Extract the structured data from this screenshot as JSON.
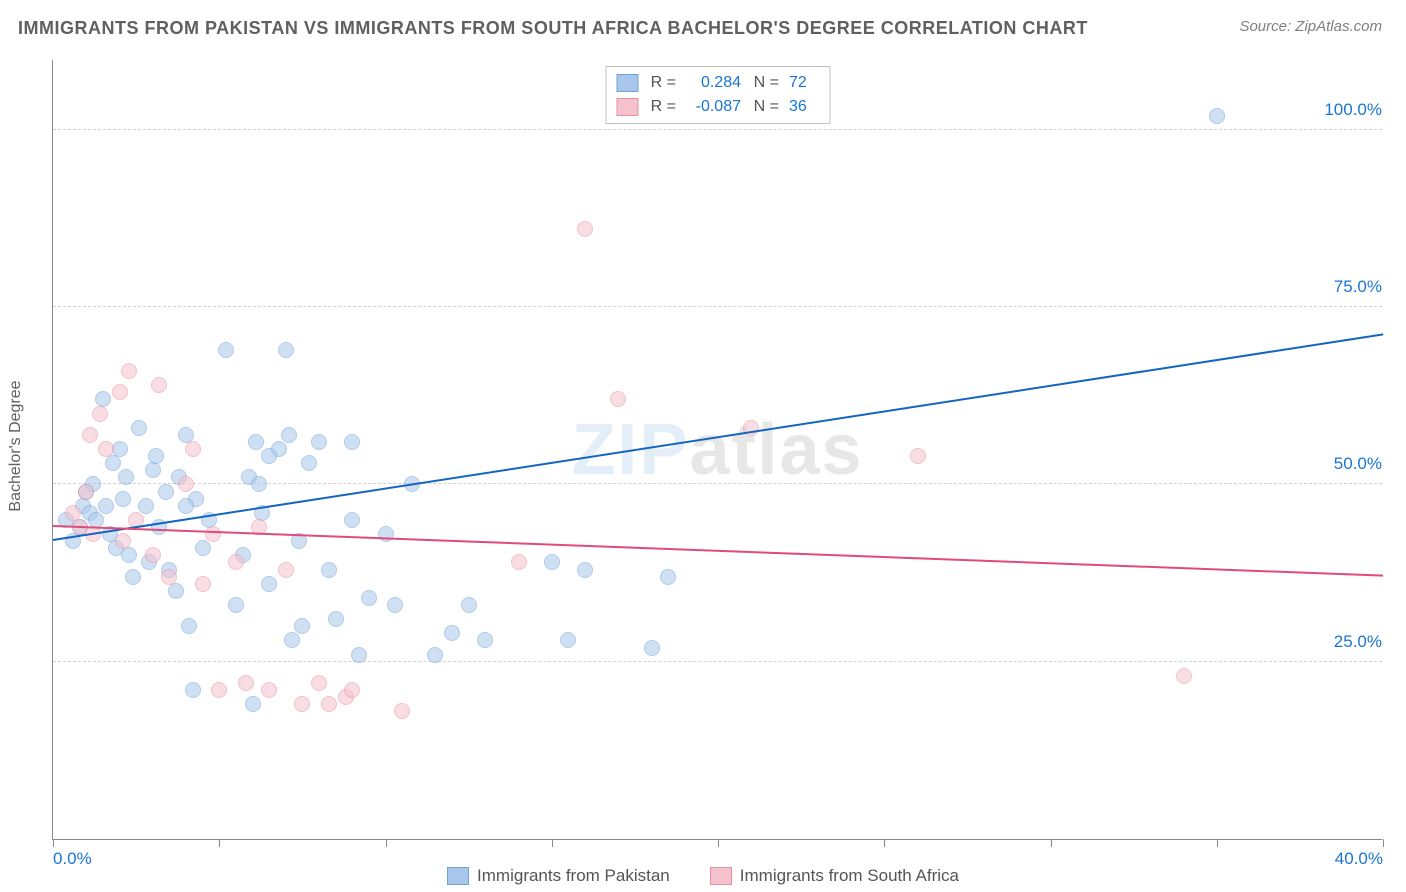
{
  "title": "IMMIGRANTS FROM PAKISTAN VS IMMIGRANTS FROM SOUTH AFRICA BACHELOR'S DEGREE CORRELATION CHART",
  "source": "Source: ZipAtlas.com",
  "watermark_a": "ZIP",
  "watermark_b": "atlas",
  "chart": {
    "type": "scatter",
    "background_color": "#ffffff",
    "grid_color": "#d0d0d0",
    "axis_color": "#888888",
    "label_color": "#606060",
    "tick_label_color": "#1976d2",
    "yaxis_label": "Bachelor's Degree",
    "xlim": [
      0,
      40
    ],
    "ylim": [
      0,
      110
    ],
    "yticks": [
      25,
      50,
      75,
      100
    ],
    "ytick_labels": [
      "25.0%",
      "50.0%",
      "75.0%",
      "100.0%"
    ],
    "xticks": [
      0,
      5,
      10,
      15,
      20,
      25,
      30,
      35,
      40
    ],
    "xtick_labels_shown": {
      "0": "0.0%",
      "40": "40.0%"
    },
    "marker_radius": 8,
    "marker_opacity": 0.55,
    "series": [
      {
        "name": "Immigrants from Pakistan",
        "color_fill": "#a9c7ea",
        "color_stroke": "#6fa3de",
        "R": "0.284",
        "N": "72",
        "trend": {
          "x1": 0,
          "y1": 42,
          "x2": 40,
          "y2": 71,
          "color": "#1565c0",
          "width": 2
        },
        "points": [
          [
            0.4,
            45
          ],
          [
            0.6,
            42
          ],
          [
            0.8,
            44
          ],
          [
            0.9,
            47
          ],
          [
            1.0,
            49
          ],
          [
            1.1,
            46
          ],
          [
            1.2,
            50
          ],
          [
            1.3,
            45
          ],
          [
            1.5,
            62
          ],
          [
            1.6,
            47
          ],
          [
            1.7,
            43
          ],
          [
            1.8,
            53
          ],
          [
            1.9,
            41
          ],
          [
            2.0,
            55
          ],
          [
            2.1,
            48
          ],
          [
            2.2,
            51
          ],
          [
            2.3,
            40
          ],
          [
            2.4,
            37
          ],
          [
            2.6,
            58
          ],
          [
            2.8,
            47
          ],
          [
            2.9,
            39
          ],
          [
            3.0,
            52
          ],
          [
            3.1,
            54
          ],
          [
            3.2,
            44
          ],
          [
            3.4,
            49
          ],
          [
            3.5,
            38
          ],
          [
            3.7,
            35
          ],
          [
            3.8,
            51
          ],
          [
            4.0,
            57
          ],
          [
            4.1,
            30
          ],
          [
            4.2,
            21
          ],
          [
            4.3,
            48
          ],
          [
            4.5,
            41
          ],
          [
            4.7,
            45
          ],
          [
            5.2,
            69
          ],
          [
            5.5,
            33
          ],
          [
            5.7,
            40
          ],
          [
            5.9,
            51
          ],
          [
            6.0,
            19
          ],
          [
            6.1,
            56
          ],
          [
            6.2,
            50
          ],
          [
            6.3,
            46
          ],
          [
            6.5,
            36
          ],
          [
            6.8,
            55
          ],
          [
            7.0,
            69
          ],
          [
            7.1,
            57
          ],
          [
            7.2,
            28
          ],
          [
            7.4,
            42
          ],
          [
            7.5,
            30
          ],
          [
            7.7,
            53
          ],
          [
            8.0,
            56
          ],
          [
            8.3,
            38
          ],
          [
            8.5,
            31
          ],
          [
            9.0,
            45
          ],
          [
            9.2,
            26
          ],
          [
            9.5,
            34
          ],
          [
            10.0,
            43
          ],
          [
            10.3,
            33
          ],
          [
            10.8,
            50
          ],
          [
            11.5,
            26
          ],
          [
            12.0,
            29
          ],
          [
            12.5,
            33
          ],
          [
            13.0,
            28
          ],
          [
            15.0,
            39
          ],
          [
            15.5,
            28
          ],
          [
            16.0,
            38
          ],
          [
            18.0,
            27
          ],
          [
            18.5,
            37
          ],
          [
            9.0,
            56
          ],
          [
            6.5,
            54
          ],
          [
            4.0,
            47
          ],
          [
            35.0,
            102
          ]
        ]
      },
      {
        "name": "Immigrants from South Africa",
        "color_fill": "#f4c2cd",
        "color_stroke": "#e98fa5",
        "R": "-0.087",
        "N": "36",
        "trend": {
          "x1": 0,
          "y1": 44,
          "x2": 40,
          "y2": 37,
          "color": "#e04b78",
          "width": 2
        },
        "points": [
          [
            0.6,
            46
          ],
          [
            0.8,
            44
          ],
          [
            1.0,
            49
          ],
          [
            1.1,
            57
          ],
          [
            1.2,
            43
          ],
          [
            1.4,
            60
          ],
          [
            1.6,
            55
          ],
          [
            2.0,
            63
          ],
          [
            2.1,
            42
          ],
          [
            2.3,
            66
          ],
          [
            2.5,
            45
          ],
          [
            3.0,
            40
          ],
          [
            3.2,
            64
          ],
          [
            3.5,
            37
          ],
          [
            4.0,
            50
          ],
          [
            4.2,
            55
          ],
          [
            4.5,
            36
          ],
          [
            4.8,
            43
          ],
          [
            5.0,
            21
          ],
          [
            5.5,
            39
          ],
          [
            5.8,
            22
          ],
          [
            6.2,
            44
          ],
          [
            6.5,
            21
          ],
          [
            7.0,
            38
          ],
          [
            7.5,
            19
          ],
          [
            8.0,
            22
          ],
          [
            8.3,
            19
          ],
          [
            8.8,
            20
          ],
          [
            9.0,
            21
          ],
          [
            10.5,
            18
          ],
          [
            14.0,
            39
          ],
          [
            16.0,
            86
          ],
          [
            17.0,
            62
          ],
          [
            21.0,
            58
          ],
          [
            26.0,
            54
          ],
          [
            34.0,
            23
          ]
        ]
      }
    ],
    "legend_bottom": [
      {
        "label": "Immigrants from Pakistan",
        "fill": "#a9c7ea",
        "stroke": "#6fa3de"
      },
      {
        "label": "Immigrants from South Africa",
        "fill": "#f4c2cd",
        "stroke": "#e98fa5"
      }
    ]
  }
}
